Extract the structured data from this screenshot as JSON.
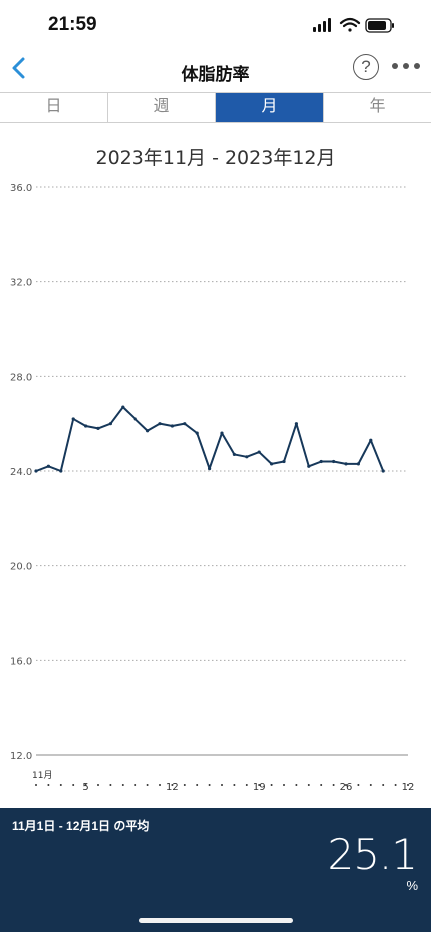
{
  "status": {
    "time": "21:59"
  },
  "nav": {
    "title": "体脂肪率"
  },
  "tabs": [
    {
      "label": "日",
      "active": false
    },
    {
      "label": "週",
      "active": false
    },
    {
      "label": "月",
      "active": true
    },
    {
      "label": "年",
      "active": false
    }
  ],
  "range_title": "2023年11月 - 2023年12月",
  "chart_data": {
    "type": "line",
    "y_ticks": [
      "36.0",
      "32.0",
      "28.0",
      "24.0",
      "20.0",
      "16.0",
      "12.0"
    ],
    "ylim": [
      12,
      36
    ],
    "x_tick_labels": [
      {
        "day": 1,
        "label": "11月"
      },
      {
        "day": 5,
        "label": "5"
      },
      {
        "day": 12,
        "label": "12"
      },
      {
        "day": 19,
        "label": "19"
      },
      {
        "day": 26,
        "label": "26"
      },
      {
        "day": 31,
        "label": "12"
      }
    ],
    "x_days": 31,
    "series": [
      {
        "values": [
          24.0,
          24.2,
          24.0,
          26.2,
          25.9,
          25.8,
          26.0,
          26.7,
          26.2,
          25.7,
          26.0,
          25.9,
          26.0,
          25.6,
          24.1,
          25.6,
          24.7,
          24.6,
          24.8,
          24.3,
          24.4,
          26.0,
          24.2,
          24.4,
          24.4,
          24.3,
          24.3,
          25.3,
          24.0
        ]
      }
    ],
    "colors": {
      "line": "#17385a",
      "grid": "#aaaaaa",
      "axis": "#888888"
    }
  },
  "summary": {
    "label": "11月1日 - 12月1日 の平均",
    "value": "25.1",
    "unit": "%"
  }
}
